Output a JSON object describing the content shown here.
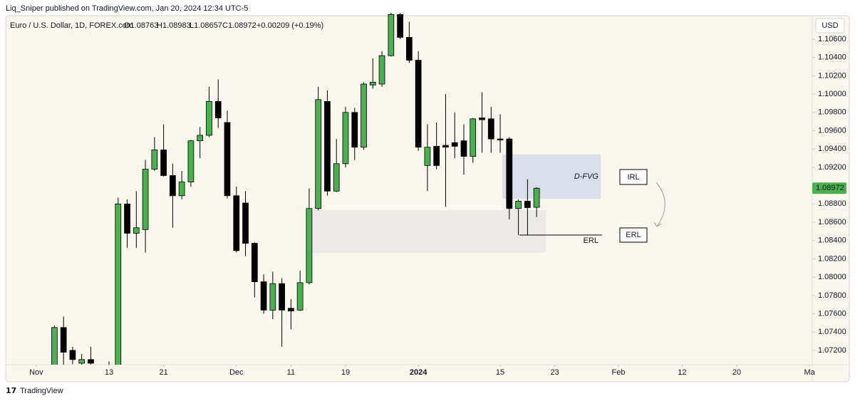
{
  "header": "Liq_Sniper published on TradingView.com, Jan 20, 2024 12:34 UTC-5",
  "footer": "TradingView",
  "currency": "USD",
  "legend": {
    "symbol": "Euro / U.S. Dollar, 1D, FOREX.com",
    "values": [
      "O1.08763",
      "H1.08983",
      "L1.08657",
      "C1.08972"
    ],
    "change": "+0.00209 (+0.19%)"
  },
  "annotations": {
    "fvg": "D-FVG",
    "irl": "IRL",
    "erl_box": "ERL",
    "erl_line": "ERL"
  },
  "chart_data": {
    "type": "candlestick",
    "up_color": "#4caf50",
    "down_color": "#000000",
    "grid": false,
    "x": [
      2,
      3,
      4,
      5,
      6,
      8,
      9,
      10,
      11,
      12,
      13,
      14,
      15,
      16,
      17,
      18,
      19,
      20,
      21,
      22,
      23,
      24,
      25,
      26,
      27,
      28,
      29,
      30,
      31,
      32,
      33,
      34,
      35,
      36,
      37,
      38,
      39,
      40,
      41,
      42,
      43,
      44,
      45,
      46,
      47,
      48,
      49,
      50,
      51,
      52,
      53,
      54,
      55
    ],
    "open": [
      1.066,
      1.0745,
      1.072,
      1.0706,
      1.071,
      1.069,
      1.07,
      1.088,
      1.0848,
      1.0852,
      1.0918,
      1.0939,
      1.0911,
      1.0889,
      1.0904,
      1.0949,
      1.0955,
      1.0992,
      1.0969,
      1.0889,
      1.0881,
      1.0837,
      1.0795,
      1.0764,
      1.0793,
      1.0766,
      1.0764,
      1.0794,
      1.0875,
      1.0992,
      1.0894,
      1.0924,
      1.098,
      1.0942,
      1.101,
      1.1011,
      1.1042,
      1.1087,
      1.1062,
      1.1037,
      1.0922,
      1.0943,
      1.0944,
      1.0947,
      1.0949,
      1.0932,
      1.0974,
      1.0973,
      1.0951,
      1.0951,
      1.0875,
      1.0883,
      1.08763
    ],
    "high": [
      1.0747,
      1.0757,
      1.0724,
      1.0716,
      1.0724,
      1.0708,
      1.0887,
      1.0885,
      1.0894,
      1.0928,
      1.0953,
      1.0967,
      1.0924,
      1.0916,
      1.095,
      1.0964,
      1.1008,
      1.1016,
      1.0982,
      1.0899,
      1.0894,
      1.0838,
      1.0803,
      1.0806,
      1.0799,
      1.0776,
      1.0807,
      1.0897,
      1.1008,
      1.1004,
      1.0951,
      1.0986,
      1.0985,
      1.1013,
      1.1039,
      1.1047,
      1.1095,
      1.1095,
      1.1079,
      1.1047,
      1.0967,
      1.0969,
      1.1,
      1.098,
      1.0967,
      1.0974,
      1.1002,
      1.0986,
      1.0978,
      1.0953,
      1.0885,
      1.0907,
      1.08983
    ],
    "low": [
      1.0655,
      1.07,
      1.0705,
      1.07,
      1.07,
      1.068,
      1.069,
      1.0832,
      1.0832,
      1.0827,
      1.0916,
      1.091,
      1.0854,
      1.0885,
      1.0899,
      1.093,
      1.0953,
      1.0963,
      1.0886,
      1.0827,
      1.0823,
      1.0778,
      1.076,
      1.0754,
      1.0724,
      1.0743,
      1.0763,
      1.0792,
      1.0873,
      1.0889,
      1.0893,
      1.092,
      1.0928,
      1.0939,
      1.1006,
      1.1008,
      1.1041,
      1.106,
      1.1034,
      1.0938,
      1.0894,
      1.0918,
      1.0877,
      1.093,
      1.0912,
      1.0925,
      1.0936,
      1.0936,
      1.0936,
      1.0863,
      1.0846,
      1.0846,
      1.08657
    ],
    "close": [
      1.0745,
      1.0718,
      1.071,
      1.071,
      1.0706,
      1.07,
      1.088,
      1.0848,
      1.0854,
      1.0918,
      1.0939,
      1.0911,
      1.0889,
      1.0904,
      1.0949,
      1.0955,
      1.0992,
      1.0974,
      1.0889,
      1.0829,
      1.0837,
      1.0795,
      1.0764,
      1.0793,
      1.0764,
      1.0763,
      1.0794,
      1.0875,
      1.0994,
      1.0894,
      1.0924,
      1.098,
      1.0942,
      1.1011,
      1.1013,
      1.1042,
      1.1087,
      1.1062,
      1.1037,
      1.0942,
      1.0942,
      1.0922,
      1.0942,
      1.0943,
      1.0932,
      1.0973,
      1.0972,
      1.0951,
      1.095,
      1.0875,
      1.0883,
      1.0876,
      1.08972
    ],
    "xlim": [
      -3.2,
      85.3
    ],
    "ylim": [
      1.07044,
      1.10888
    ],
    "xticks": [
      {
        "value": 0,
        "label": "Nov"
      },
      {
        "value": 8,
        "label": "13"
      },
      {
        "value": 14,
        "label": "21"
      },
      {
        "value": 22,
        "label": "Dec"
      },
      {
        "value": 28,
        "label": "11"
      },
      {
        "value": 34,
        "label": "19"
      },
      {
        "value": 42,
        "label": "2024"
      },
      {
        "value": 51,
        "label": "15"
      },
      {
        "value": 57,
        "label": "23"
      },
      {
        "value": 64,
        "label": "Feb"
      },
      {
        "value": 71,
        "label": "12"
      },
      {
        "value": 77,
        "label": "20"
      },
      {
        "value": 85,
        "label": "Ma"
      }
    ],
    "yticks": [
      {
        "value": 1.072,
        "label": "1.07200"
      },
      {
        "value": 1.074,
        "label": "1.07400"
      },
      {
        "value": 1.076,
        "label": "1.07600"
      },
      {
        "value": 1.078,
        "label": "1.07800"
      },
      {
        "value": 1.08,
        "label": "1.08000"
      },
      {
        "value": 1.082,
        "label": "1.08200"
      },
      {
        "value": 1.084,
        "label": "1.08400"
      },
      {
        "value": 1.086,
        "label": "1.08600"
      },
      {
        "value": 1.088,
        "label": "1.08800"
      },
      {
        "value": 1.092,
        "label": "1.09200"
      },
      {
        "value": 1.094,
        "label": "1.09400"
      },
      {
        "value": 1.096,
        "label": "1.09600"
      },
      {
        "value": 1.098,
        "label": "1.09800"
      },
      {
        "value": 1.1,
        "label": "1.10000"
      },
      {
        "value": 1.102,
        "label": "1.10200"
      },
      {
        "value": 1.104,
        "label": "1.10400"
      },
      {
        "value": 1.106,
        "label": "1.10600"
      }
    ]
  }
}
